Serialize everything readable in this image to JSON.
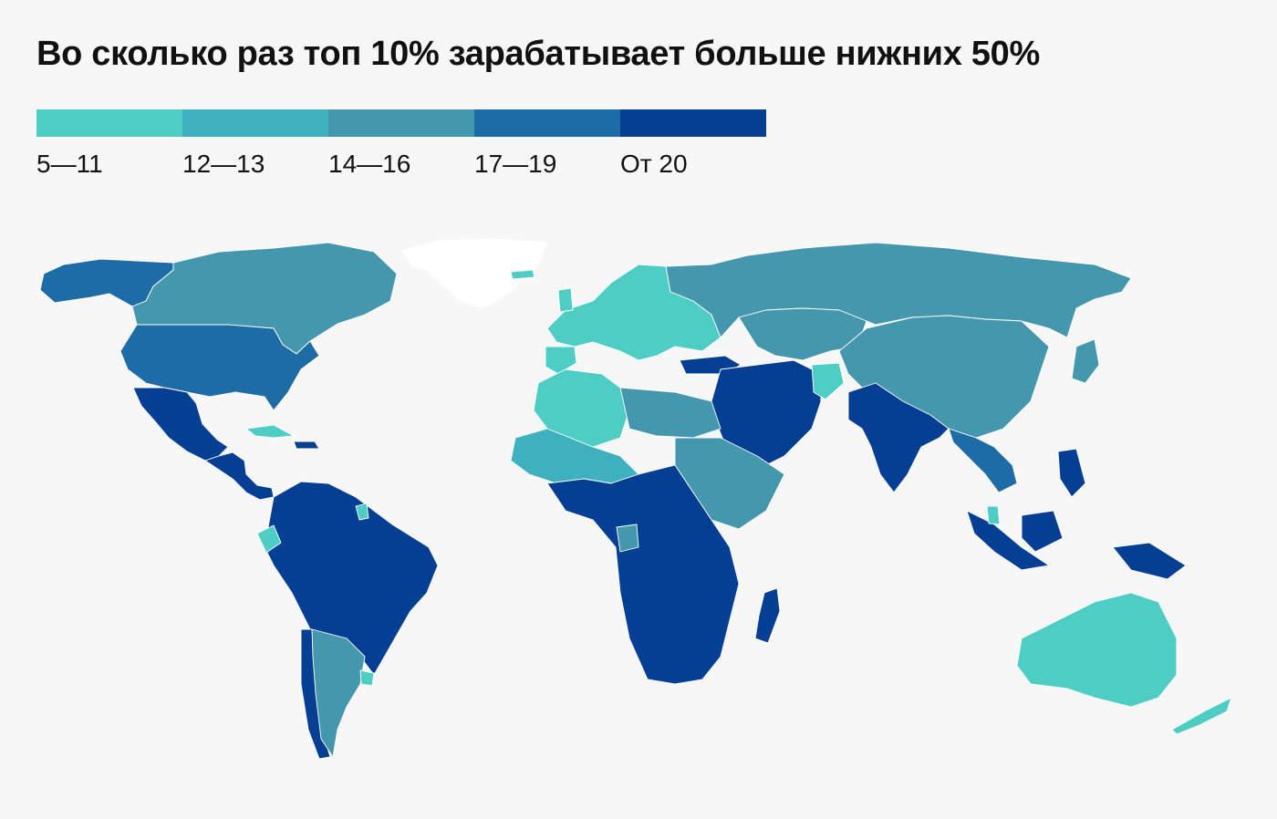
{
  "title": "Во сколько раз топ 10% зарабатывает больше нижних 50%",
  "colors": {
    "background": "#f7f7f8",
    "no_data": "#ffffff",
    "c1": "#4ecdc4",
    "c2": "#3fb0be",
    "c3": "#4597ae",
    "c4": "#1e6ca6",
    "c5": "#043f94"
  },
  "legend": [
    {
      "label": "5—11",
      "color": "#4ecdc4"
    },
    {
      "label": "12—13",
      "color": "#3fb0be"
    },
    {
      "label": "14—16",
      "color": "#4597ae"
    },
    {
      "label": "17—19",
      "color": "#1e6ca6"
    },
    {
      "label": "От 20",
      "color": "#043f94"
    }
  ]
}
